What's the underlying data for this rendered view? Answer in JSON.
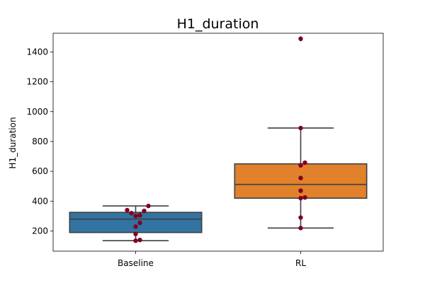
{
  "chart_data": {
    "type": "box",
    "title": "H1_duration",
    "xlabel": "",
    "ylabel": "H1_duration",
    "ylim": [
      65,
      1525
    ],
    "yticks": [
      200,
      400,
      600,
      800,
      1000,
      1200,
      1400
    ],
    "categories": [
      "Baseline",
      "RL"
    ],
    "colors": {
      "Baseline": "#3274a1",
      "RL": "#e1812c",
      "points": "#800020",
      "lines": "#3f3f3f"
    },
    "boxes": [
      {
        "name": "Baseline",
        "whisker_low": 135,
        "q1": 190,
        "median": 280,
        "q3": 325,
        "whisker_high": 368,
        "outliers": [],
        "points": [
          135,
          140,
          180,
          230,
          255,
          300,
          305,
          320,
          335,
          340,
          368
        ]
      },
      {
        "name": "RL",
        "whisker_low": 220,
        "q1": 420,
        "median": 512,
        "q3": 650,
        "whisker_high": 890,
        "outliers": [
          1488
        ],
        "points": [
          220,
          290,
          420,
          425,
          470,
          555,
          640,
          658,
          890,
          1488
        ]
      }
    ]
  }
}
